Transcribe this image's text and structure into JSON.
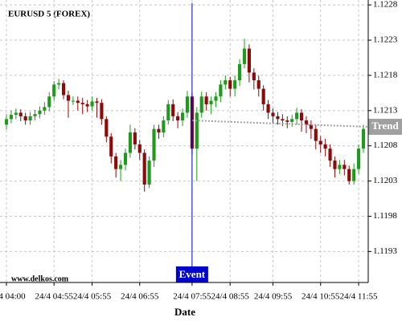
{
  "chart_data": {
    "type": "candlestick",
    "title": "EURUSD 5 (FOREX)",
    "watermark": "www.delkos.com",
    "x_label": "Date",
    "categories": [
      "24/4 04:00",
      null,
      null,
      null,
      null,
      null,
      null,
      null,
      null,
      null,
      "24/4 04:55",
      null,
      null,
      null,
      null,
      null,
      null,
      null,
      "24/4 05:55",
      null,
      null,
      null,
      null,
      null,
      null,
      null,
      null,
      null,
      "24/4 06:55",
      null,
      null,
      null,
      null,
      null,
      null,
      null,
      null,
      null,
      null,
      "24/4 07:55",
      null,
      null,
      null,
      null,
      null,
      null,
      null,
      "24/4 08:55",
      null,
      null,
      null,
      null,
      null,
      null,
      null,
      null,
      "24/4 09:55",
      null,
      null,
      null,
      null,
      null,
      null,
      null,
      null,
      null,
      "24/4 10:55",
      null,
      null,
      null,
      null,
      null,
      null,
      null,
      "24/4 11:55",
      null
    ],
    "open": [
      1.1211,
      1.12118,
      1.12124,
      1.12127,
      1.12122,
      1.12116,
      1.12122,
      1.12125,
      1.1213,
      1.12135,
      1.1215,
      1.12167,
      1.12169,
      1.12152,
      1.12144,
      1.12144,
      1.12141,
      1.12139,
      1.12136,
      1.12143,
      1.12141,
      1.12118,
      1.12093,
      1.12065,
      1.12047,
      1.12053,
      1.1207,
      1.12099,
      1.12082,
      1.1207,
      1.12025,
      1.12059,
      1.12104,
      1.12099,
      1.12116,
      1.12139,
      1.12122,
      1.12116,
      1.12127,
      1.1215,
      1.12076,
      1.12127,
      1.1215,
      1.12139,
      1.12144,
      1.1215,
      1.12167,
      1.12173,
      1.12161,
      1.12173,
      1.12196,
      1.12218,
      1.12184,
      1.12173,
      1.12161,
      1.12139,
      1.12127,
      1.12122,
      1.12118,
      1.12116,
      1.12114,
      1.12118,
      1.12127,
      1.12116,
      1.1211,
      1.12104,
      1.12087,
      1.12082,
      1.12076,
      1.12059,
      1.12047,
      1.12053,
      1.12047,
      1.1203,
      1.12047,
      1.12076
    ],
    "high": [
      1.12125,
      1.1213,
      1.12133,
      1.12132,
      1.12127,
      1.12128,
      1.12131,
      1.12136,
      1.12142,
      1.12156,
      1.12172,
      1.12175,
      1.12173,
      1.12158,
      1.1215,
      1.1215,
      1.12148,
      1.12145,
      1.1215,
      1.12148,
      1.12146,
      1.12122,
      1.12098,
      1.1207,
      1.1206,
      1.12076,
      1.1211,
      1.12105,
      1.12088,
      1.12075,
      1.12065,
      1.1211,
      1.1211,
      1.12122,
      1.12145,
      1.12146,
      1.12128,
      1.12133,
      1.12158,
      1.12155,
      1.12135,
      1.12157,
      1.12156,
      1.1215,
      1.12156,
      1.12173,
      1.1218,
      1.12178,
      1.1218,
      1.12203,
      1.12232,
      1.12224,
      1.1219,
      1.1218,
      1.12166,
      1.12145,
      1.12133,
      1.12128,
      1.12125,
      1.12122,
      1.12124,
      1.12134,
      1.12132,
      1.12122,
      1.12116,
      1.1211,
      1.12094,
      1.1209,
      1.12082,
      1.12065,
      1.1206,
      1.1206,
      1.12052,
      1.12055,
      1.12082,
      1.1211
    ],
    "low": [
      1.12103,
      1.12112,
      1.12118,
      1.12115,
      1.1211,
      1.1211,
      1.12116,
      1.12119,
      1.12124,
      1.12129,
      1.12144,
      1.1216,
      1.12146,
      1.1212,
      1.12138,
      1.1213,
      1.12125,
      1.12128,
      1.1213,
      1.1212,
      1.1211,
      1.12085,
      1.12055,
      1.12035,
      1.1203,
      1.12045,
      1.12063,
      1.12075,
      1.1206,
      1.12015,
      1.1202,
      1.1205,
      1.1209,
      1.12092,
      1.1211,
      1.12115,
      1.12105,
      1.12108,
      1.1212,
      1.12068,
      1.1203,
      1.1212,
      1.1213,
      1.12125,
      1.12135,
      1.12142,
      1.1216,
      1.1215,
      1.1215,
      1.12165,
      1.1219,
      1.1217,
      1.1216,
      1.1215,
      1.1213,
      1.12118,
      1.12112,
      1.1211,
      1.12108,
      1.12105,
      1.12107,
      1.1211,
      1.121,
      1.12098,
      1.1209,
      1.12075,
      1.1207,
      1.12065,
      1.1205,
      1.12035,
      1.1204,
      1.12038,
      1.12025,
      1.12025,
      1.1204,
      1.1207
    ],
    "close": [
      1.12118,
      1.12124,
      1.12127,
      1.12122,
      1.12116,
      1.12122,
      1.12125,
      1.1213,
      1.12135,
      1.1215,
      1.12167,
      1.12169,
      1.12152,
      1.12144,
      1.12144,
      1.12141,
      1.12139,
      1.12136,
      1.12143,
      1.12141,
      1.12118,
      1.12093,
      1.12065,
      1.12047,
      1.12053,
      1.1207,
      1.12099,
      1.12082,
      1.1207,
      1.12025,
      1.12059,
      1.12104,
      1.12099,
      1.12116,
      1.12139,
      1.12122,
      1.12116,
      1.12127,
      1.1215,
      1.12076,
      1.12127,
      1.1215,
      1.12139,
      1.12144,
      1.1215,
      1.12167,
      1.12173,
      1.12161,
      1.12173,
      1.12196,
      1.12218,
      1.12184,
      1.12173,
      1.12161,
      1.12139,
      1.12127,
      1.12122,
      1.12118,
      1.12116,
      1.12114,
      1.12118,
      1.12127,
      1.12116,
      1.1211,
      1.12104,
      1.12087,
      1.12082,
      1.12076,
      1.12059,
      1.12047,
      1.12053,
      1.12047,
      1.1203,
      1.12047,
      1.12076,
      1.12104
    ],
    "up_color": "#1f9a1f",
    "down_color": "#8b0a0a",
    "ylim": [
      1.11886,
      1.12287
    ],
    "yticks": [
      1.1193,
      1.1198,
      1.1203,
      1.1208,
      1.1213,
      1.1218,
      1.1223,
      1.1228
    ],
    "grid": true,
    "event": {
      "label": "Event",
      "at": "24/4 07:55",
      "color": "#0000cc"
    },
    "trend": {
      "label": "Trend",
      "values": [
        1.12116,
        1.12107
      ],
      "color": "#a0a0a0"
    }
  }
}
